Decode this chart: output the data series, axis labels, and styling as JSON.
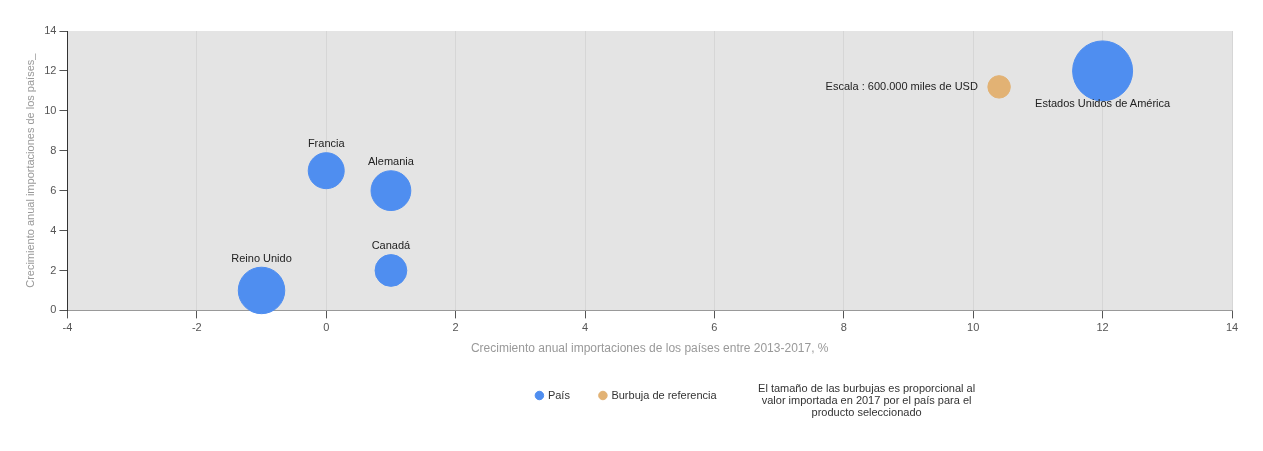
{
  "chart_data": {
    "type": "bubble",
    "xlabel": "Crecimiento anual importaciones de los países entre 2013-2017, %",
    "ylabel": "Crecimiento anual importaciones de los países_",
    "series": [
      {
        "name": "País",
        "color": "#4f8ef0",
        "x": [
          -1,
          0,
          1,
          1,
          12
        ],
        "values": [
          1,
          7,
          6,
          2,
          12
        ],
        "sizes": [
          0.6,
          0.36,
          0.44,
          0.28,
          1
        ]
      },
      {
        "name": "Burbuja de referencia",
        "color": "#e2b274",
        "x": [
          10.4
        ],
        "values": [
          11.2
        ],
        "sizes": [
          0.14
        ]
      }
    ],
    "annotations": [
      {
        "text": "Reino Unido",
        "x": -1,
        "y": 1
      },
      {
        "text": "Francia",
        "x": 0,
        "y": 7
      },
      {
        "text": "Alemania",
        "x": 1,
        "y": 6
      },
      {
        "text": "Canadá",
        "x": 1,
        "y": 2
      },
      {
        "text": "Estados Unidos de América",
        "x": 12,
        "y": 12
      },
      {
        "text": "Escala : 600.000 miles de USD",
        "x": 10.4,
        "y": 11.2
      },
      "El tamaño de las burbujas es proporcional al valor importada en 2017 por el país para el producto seleccionado"
    ],
    "xlim": [
      -4,
      14
    ],
    "xticks": [
      -4,
      -2,
      0,
      2,
      4,
      6,
      8,
      10,
      12,
      14
    ],
    "ylim": [
      0,
      14
    ],
    "yticks": [
      0,
      2,
      4,
      6,
      8,
      10,
      12,
      14
    ],
    "grid": "x",
    "legend": "bottom"
  }
}
